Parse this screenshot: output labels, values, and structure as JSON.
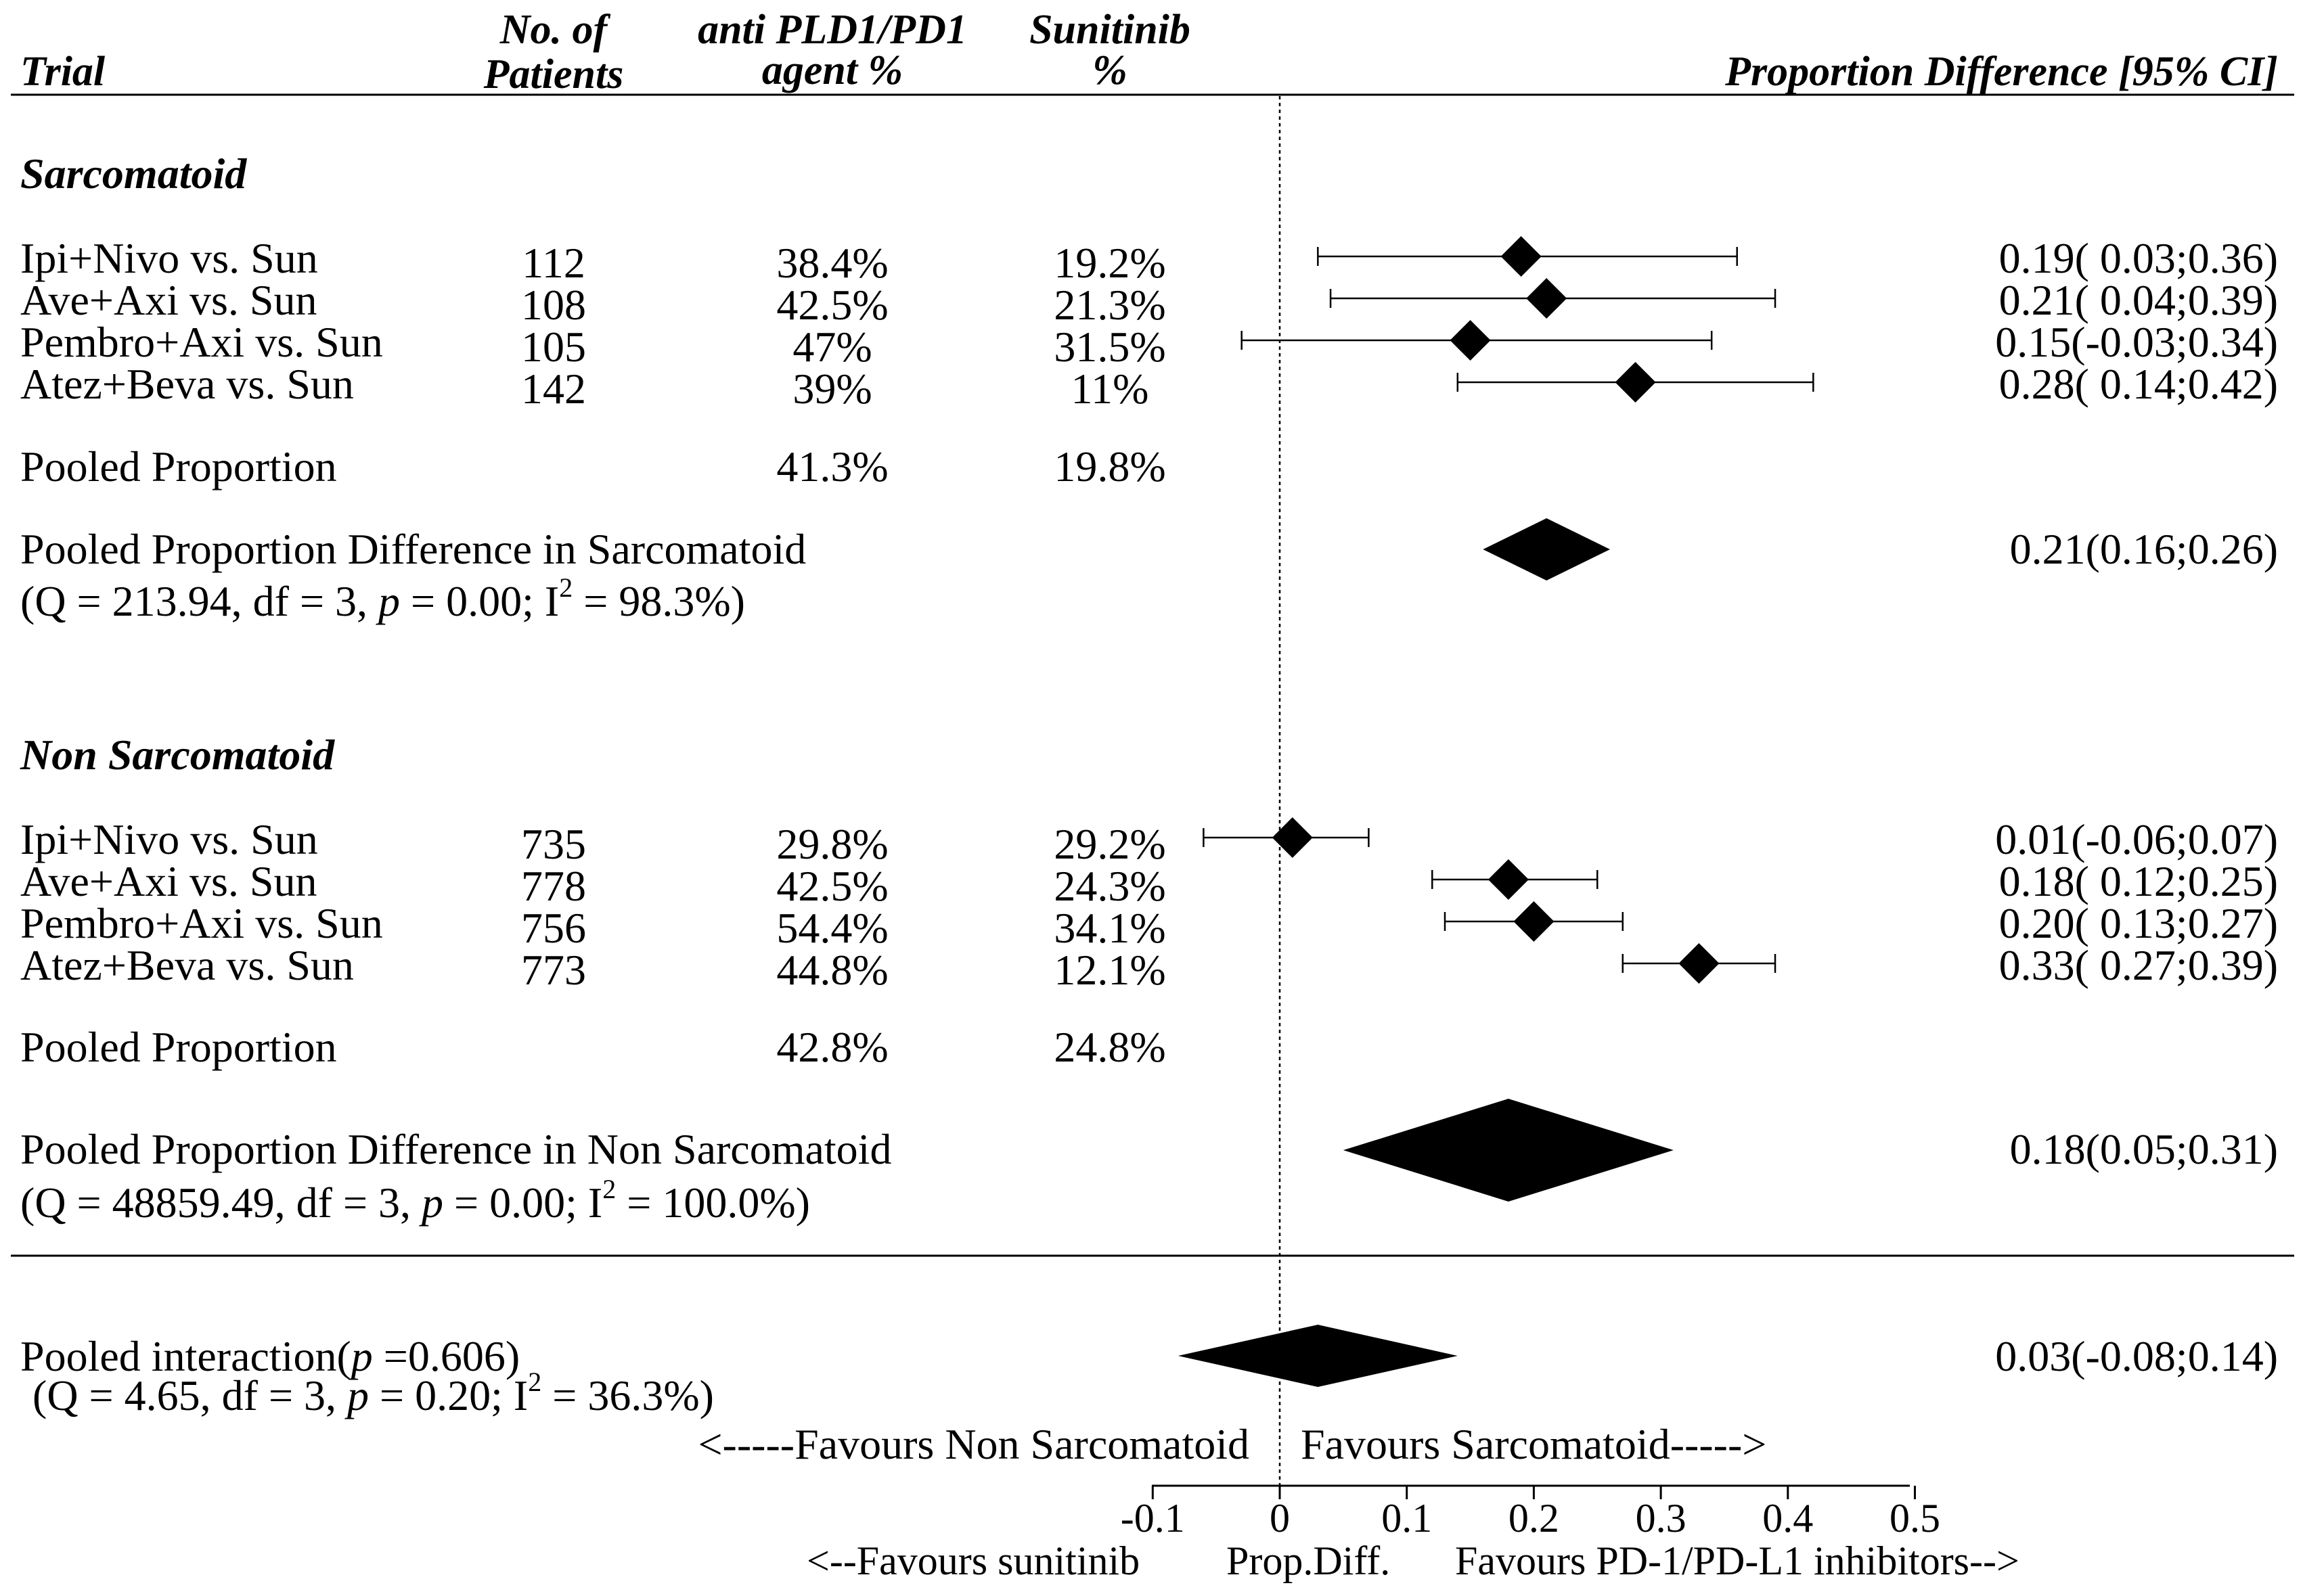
{
  "chart_data": {
    "type": "forest",
    "headers": {
      "trial": "Trial",
      "patients": [
        "No. of",
        "Patients"
      ],
      "agent": [
        "anti PLD1/PD1",
        "agent %"
      ],
      "sunitinib": [
        "Sunitinib",
        "%"
      ],
      "ci": "Proportion Difference [95% CI]"
    },
    "sections": [
      {
        "title": "Sarcomatoid",
        "studies": [
          {
            "label": "Ipi+Nivo vs. Sun",
            "n": "112",
            "agent": "38.4%",
            "sun": "19.2%",
            "est": 0.19,
            "lo": 0.03,
            "hi": 0.36,
            "ci_text": "0.19( 0.03;0.36)"
          },
          {
            "label": "Ave+Axi vs. Sun",
            "n": "108",
            "agent": "42.5%",
            "sun": "21.3%",
            "est": 0.21,
            "lo": 0.04,
            "hi": 0.39,
            "ci_text": "0.21( 0.04;0.39)"
          },
          {
            "label": "Pembro+Axi vs. Sun",
            "n": "105",
            "agent": "47%",
            "sun": "31.5%",
            "est": 0.15,
            "lo": -0.03,
            "hi": 0.34,
            "ci_text": "0.15(-0.03;0.34)"
          },
          {
            "label": "Atez+Beva vs. Sun",
            "n": "142",
            "agent": "39%",
            "sun": "11%",
            "est": 0.28,
            "lo": 0.14,
            "hi": 0.42,
            "ci_text": "0.28( 0.14;0.42)"
          }
        ],
        "pooled_proportion": {
          "label": "Pooled Proportion",
          "agent": "41.3%",
          "sun": "19.8%"
        },
        "pooled_diff": {
          "label": "Pooled Proportion Difference in Sarcomatoid",
          "stats_pre": "(Q = 213.94, df = 3, ",
          "p_symbol": "p",
          "stats_mid": " = 0.00; I",
          "sup": "2",
          "stats_post": " = 98.3%)",
          "est": 0.21,
          "lo": 0.16,
          "hi": 0.26,
          "ci_text": "0.21(0.16;0.26)"
        }
      },
      {
        "title": "Non Sarcomatoid",
        "studies": [
          {
            "label": "Ipi+Nivo vs. Sun",
            "n": "735",
            "agent": "29.8%",
            "sun": "29.2%",
            "est": 0.01,
            "lo": -0.06,
            "hi": 0.07,
            "ci_text": "0.01(-0.06;0.07)"
          },
          {
            "label": "Ave+Axi vs. Sun",
            "n": "778",
            "agent": "42.5%",
            "sun": "24.3%",
            "est": 0.18,
            "lo": 0.12,
            "hi": 0.25,
            "ci_text": "0.18( 0.12;0.25)"
          },
          {
            "label": "Pembro+Axi vs. Sun",
            "n": "756",
            "agent": "54.4%",
            "sun": "34.1%",
            "est": 0.2,
            "lo": 0.13,
            "hi": 0.27,
            "ci_text": "0.20( 0.13;0.27)"
          },
          {
            "label": "Atez+Beva vs. Sun",
            "n": "773",
            "agent": "44.8%",
            "sun": "12.1%",
            "est": 0.33,
            "lo": 0.27,
            "hi": 0.39,
            "ci_text": "0.33( 0.27;0.39)"
          }
        ],
        "pooled_proportion": {
          "label": "Pooled Proportion",
          "agent": "42.8%",
          "sun": "24.8%"
        },
        "pooled_diff": {
          "label": "Pooled Proportion Difference in Non Sarcomatoid",
          "stats_pre": "(Q = 48859.49, df = 3, ",
          "p_symbol": "p",
          "stats_mid": " = 0.00; I",
          "sup": "2",
          "stats_post": " = 100.0%)",
          "est": 0.18,
          "lo": 0.05,
          "hi": 0.31,
          "ci_text": "0.18(0.05;0.31)"
        }
      }
    ],
    "interaction": {
      "label_pre": "Pooled interaction(",
      "label_p": "p",
      "label_post": " =0.606)",
      "stats_pre": "(Q = 4.65, df = 3, ",
      "p_symbol": "p",
      "stats_mid": " = 0.20; I",
      "sup": "2",
      "stats_post": " = 36.3%)",
      "est": 0.03,
      "lo": -0.08,
      "hi": 0.14,
      "ci_text": "0.03(-0.08;0.14)"
    },
    "favours_top": [
      "<-----Favours Non Sarcomatoid",
      "Favours Sarcomatoid----->"
    ],
    "axis": {
      "ticks": [
        -0.1,
        0,
        0.1,
        0.2,
        0.3,
        0.4,
        0.5
      ],
      "tick_labels": [
        "-0.1",
        "0",
        "0.1",
        "0.2",
        "0.3",
        "0.4",
        "0.5"
      ],
      "xlim": [
        -0.1,
        0.5
      ],
      "label_left": "<--Favours sunitinib",
      "label_mid": "Prop.Diff.",
      "label_right": "Favours PD-1/PD-L1 inhibitors-->"
    }
  }
}
